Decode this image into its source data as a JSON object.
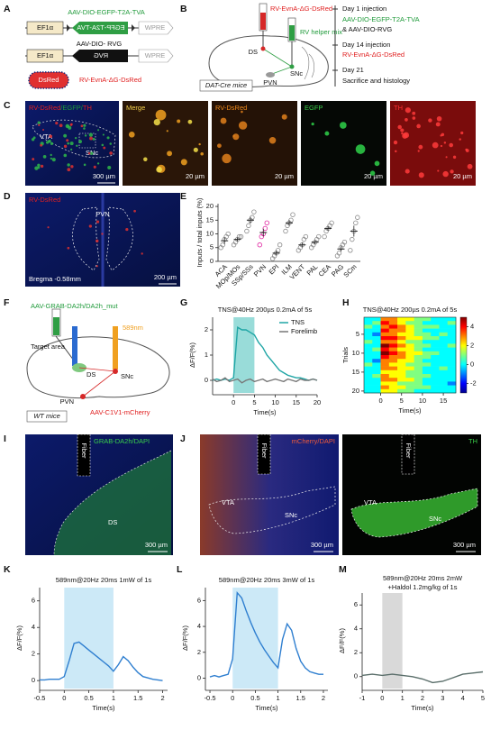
{
  "panel_labels": [
    "A",
    "B",
    "C",
    "D",
    "E",
    "F",
    "G",
    "H",
    "I",
    "J",
    "K",
    "L",
    "M"
  ],
  "A": {
    "construct1_name": "AAV-DIO-EGFP-T2A-TVA",
    "promoter1": "EF1α",
    "gene1": "EGFP-T2A-TVA",
    "wpre1": "WPRE",
    "construct2_name": "AAV-DIO- RVG",
    "promoter2": "EF1α",
    "gene2": "RVG",
    "wpre2": "WPRE",
    "gene3": "DsRed",
    "construct3_name": "RV-EvnA-ΔG-DsRed"
  },
  "B": {
    "virus1": "RV-EvnA-ΔG-DsRed",
    "virus2": "RV helper mix",
    "regions": [
      "DS",
      "SNc",
      "PVN"
    ],
    "mouse": "DAT-Cre mice",
    "timeline": [
      "Day 1 injection",
      "AAV-DIO-EGFP-T2A-TVA",
      "& AAV-DIO-RVG",
      "Day 14 injection",
      "RV-EvnA-ΔG-DsRed",
      "Day 21",
      "Sacrifice and histology"
    ]
  },
  "C": {
    "overview_label": [
      "RV-DsRed",
      "/EGFP/",
      "TH"
    ],
    "regions": [
      "VTA",
      "SNc"
    ],
    "scale": "300 µm",
    "panels": [
      {
        "label": "Merge",
        "scale": "20 µm"
      },
      {
        "label": "RV-DsRed",
        "scale": "20 µm"
      },
      {
        "label": "EGFP",
        "scale": "20 µm"
      },
      {
        "label": "TH",
        "scale": "20 µm"
      }
    ]
  },
  "D": {
    "label": "RV-DsRed",
    "region": "PVN",
    "bregma": "Bregma -0.58mm",
    "scale": "200 µm"
  },
  "F": {
    "virus1": "AAV-GRAB-DA2h/DA2h_mut",
    "laser": "589nm",
    "target": "Target area",
    "regions": [
      "DS",
      "SNc",
      "PVN"
    ],
    "mouse": "WT mice",
    "virus2": "AAV-C1V1-mCherry"
  },
  "I": {
    "label": "GRAB-DA2h/DAPI",
    "fiber": "Fiber",
    "region": "DS",
    "scale": "300 µm"
  },
  "J": {
    "left": {
      "label": "mCherry/DAPI",
      "fiber": "Fiber",
      "regions": [
        "VTA",
        "SNc"
      ],
      "scale": "300 µm"
    },
    "right": {
      "label": "TH",
      "fiber": "Fiber",
      "regions": [
        "VTA",
        "SNc"
      ],
      "scale": "300 µm"
    }
  },
  "chart_data": [
    {
      "type": "dot",
      "ylabel": "Inputs / total inputs (%)",
      "categories": [
        "ACA",
        "MOp/MOs",
        "SSp/SSs",
        "PVN",
        "EPI",
        "ILM",
        "VENT",
        "PAL",
        "CEA",
        "PAG",
        "SCm"
      ],
      "points": [
        [
          5,
          6,
          8,
          9,
          10
        ],
        [
          6,
          7,
          8,
          9,
          9
        ],
        [
          11,
          13,
          15,
          16,
          18
        ],
        [
          6,
          9,
          10,
          12,
          14
        ],
        [
          1,
          2,
          3,
          4,
          6
        ],
        [
          11,
          13,
          14,
          15,
          17
        ],
        [
          4,
          5,
          6,
          8,
          9
        ],
        [
          5,
          6,
          7,
          8,
          9
        ],
        [
          9,
          11,
          12,
          13,
          14
        ],
        [
          2,
          3,
          5,
          6,
          7
        ],
        [
          4,
          8,
          11,
          14,
          16
        ]
      ],
      "means": [
        7.5,
        8,
        15,
        10.5,
        3,
        14,
        6,
        7,
        12,
        4.5,
        11
      ],
      "sems": [
        1.2,
        0.7,
        1.2,
        1.4,
        0.8,
        1,
        0.9,
        0.7,
        0.9,
        0.9,
        2
      ],
      "colors": [
        "#8a8a8a",
        "#8a8a8a",
        "#8a8a8a",
        "#e0219f",
        "#8a8a8a",
        "#8a8a8a",
        "#8a8a8a",
        "#8a8a8a",
        "#8a8a8a",
        "#8a8a8a",
        "#8a8a8a"
      ],
      "ylim": [
        0,
        21
      ],
      "yticks": [
        0,
        5,
        10,
        15,
        20
      ]
    },
    {
      "type": "line",
      "title": "TNS@40Hz 200µs 0.2mA of 5s",
      "xlabel": "Time(s)",
      "ylabel": "ΔF/F(%)",
      "x": [
        -5,
        -4,
        -3,
        -2,
        -1,
        0,
        1,
        2,
        3,
        4,
        5,
        6,
        7,
        8,
        9,
        10,
        11,
        12,
        13,
        14,
        15,
        16,
        17,
        18,
        19,
        20
      ],
      "series": [
        {
          "name": "TNS",
          "color": "#1fa5a5",
          "values": [
            0,
            0.05,
            0,
            0.05,
            0,
            0.1,
            2.1,
            2.0,
            2.0,
            1.9,
            1.8,
            1.5,
            1.3,
            1.0,
            0.8,
            0.6,
            0.4,
            0.3,
            0.2,
            0.15,
            0.1,
            0.1,
            0.05,
            0,
            0.05,
            0
          ]
        },
        {
          "name": "Forelimb",
          "color": "#777777",
          "values": [
            0.05,
            -0.05,
            0,
            0.1,
            -0.05,
            0,
            0.05,
            -0.1,
            0,
            0.05,
            -0.05,
            0,
            0.05,
            -0.05,
            0,
            0.05,
            0,
            -0.05,
            0.05,
            0,
            -0.05,
            0.05,
            0,
            0,
            0.05,
            0
          ]
        }
      ],
      "xlim": [
        -5,
        20
      ],
      "ylim": [
        -0.5,
        2.5
      ],
      "xticks": [
        0,
        5,
        10,
        15,
        20
      ],
      "yticks": [
        0,
        1,
        2
      ],
      "shade": {
        "range": [
          0,
          5
        ],
        "color": "#7fd3cf"
      },
      "legend": "upper right"
    },
    {
      "type": "heatmap",
      "title": "TNS@40Hz 200µs 0.2mA of 5s",
      "xlabel": "Time(s)",
      "ylabel": "Trials",
      "xbins": [
        -4,
        -2,
        0,
        2,
        4,
        6,
        8,
        10,
        12,
        14,
        16,
        18
      ],
      "values": [
        [
          0,
          0,
          3,
          3,
          2,
          2,
          1,
          1,
          0,
          0,
          0
        ],
        [
          0,
          1,
          4,
          3,
          2,
          1,
          1,
          0,
          0,
          0,
          1
        ],
        [
          1,
          0,
          3,
          4,
          3,
          2,
          1,
          1,
          1,
          0,
          0
        ],
        [
          0,
          0,
          4,
          3,
          3,
          2,
          1,
          0,
          0,
          0,
          0
        ],
        [
          0,
          -1,
          3,
          3,
          2,
          2,
          1,
          1,
          0,
          1,
          0
        ],
        [
          0,
          0,
          4,
          4,
          3,
          2,
          2,
          1,
          1,
          0,
          0
        ],
        [
          1,
          0,
          3,
          3,
          2,
          1,
          1,
          0,
          0,
          0,
          0
        ],
        [
          0,
          0,
          5,
          4,
          3,
          2,
          1,
          1,
          0,
          0,
          1
        ],
        [
          0,
          1,
          4,
          3,
          2,
          2,
          1,
          0,
          0,
          0,
          0
        ],
        [
          0,
          0,
          5,
          4,
          3,
          2,
          2,
          1,
          1,
          0,
          0
        ],
        [
          0,
          0,
          4,
          3,
          3,
          2,
          1,
          1,
          0,
          0,
          0
        ],
        [
          0,
          -1,
          3,
          3,
          2,
          2,
          1,
          0,
          0,
          0,
          0
        ],
        [
          1,
          0,
          3,
          2,
          2,
          1,
          1,
          1,
          0,
          0,
          0
        ],
        [
          0,
          0,
          3,
          3,
          2,
          2,
          1,
          0,
          0,
          1,
          0
        ],
        [
          0,
          0,
          2,
          2,
          2,
          1,
          1,
          0,
          0,
          0,
          0
        ],
        [
          0,
          1,
          3,
          2,
          2,
          1,
          1,
          1,
          0,
          0,
          0
        ],
        [
          0,
          0,
          3,
          3,
          2,
          2,
          1,
          0,
          0,
          0,
          0
        ],
        [
          0,
          0,
          2,
          2,
          1,
          1,
          1,
          0,
          0,
          0,
          -1
        ],
        [
          0,
          0,
          3,
          2,
          2,
          1,
          1,
          1,
          0,
          0,
          0
        ],
        [
          0,
          0,
          2,
          2,
          1,
          1,
          0,
          0,
          0,
          0,
          0
        ]
      ],
      "ylim": [
        0.5,
        20.5
      ],
      "yticks": [
        5,
        10,
        15,
        20
      ],
      "xticks": [
        0,
        5,
        10,
        15
      ],
      "colorbar": {
        "lim": [
          -3,
          5
        ],
        "ticks": [
          4,
          2,
          0,
          -2
        ]
      }
    },
    {
      "type": "line",
      "title": "589nm@20Hz 20ms 1mW of 1s",
      "xlabel": "Time(s)",
      "ylabel": "ΔF/F(%)",
      "x": [
        -0.5,
        -0.4,
        -0.3,
        -0.2,
        -0.1,
        0,
        0.1,
        0.2,
        0.3,
        0.4,
        0.5,
        0.6,
        0.7,
        0.8,
        0.9,
        1,
        1.1,
        1.2,
        1.3,
        1.4,
        1.5,
        1.6,
        1.7,
        1.8,
        1.9,
        2
      ],
      "series": [
        {
          "color": "#2f7fd0",
          "values": [
            0.05,
            0.05,
            0.1,
            0.1,
            0.1,
            0.3,
            1.5,
            2.8,
            2.9,
            2.6,
            2.3,
            2.0,
            1.7,
            1.4,
            1.1,
            0.7,
            1.2,
            1.8,
            1.5,
            1.0,
            0.6,
            0.3,
            0.2,
            0.1,
            0.05,
            0
          ]
        }
      ],
      "xlim": [
        -0.5,
        2.1
      ],
      "ylim": [
        -0.6,
        7
      ],
      "xticks": [
        -0.5,
        0,
        0.5,
        1,
        1.5,
        2
      ],
      "yticks": [
        0,
        2,
        4,
        6
      ],
      "shade": {
        "range": [
          0,
          1
        ],
        "color": "#bfe3f5"
      }
    },
    {
      "type": "line",
      "title": "589nm@20Hz 20ms 3mW of 1s",
      "xlabel": "Time(s)",
      "ylabel": "ΔF/F(%)",
      "x": [
        -0.5,
        -0.4,
        -0.3,
        -0.2,
        -0.1,
        0,
        0.1,
        0.2,
        0.3,
        0.4,
        0.5,
        0.6,
        0.7,
        0.8,
        0.9,
        1,
        1.1,
        1.2,
        1.3,
        1.4,
        1.5,
        1.6,
        1.7,
        1.8,
        1.9,
        2
      ],
      "series": [
        {
          "color": "#2f7fd0",
          "values": [
            0.1,
            0.2,
            0.1,
            0.2,
            0.3,
            1.5,
            6.6,
            6.2,
            5.2,
            4.3,
            3.5,
            2.8,
            2.2,
            1.7,
            1.2,
            0.8,
            3,
            4.2,
            3.7,
            2.3,
            1.3,
            0.8,
            0.5,
            0.4,
            0.3,
            0.3
          ]
        }
      ],
      "xlim": [
        -0.6,
        2.1
      ],
      "ylim": [
        -0.8,
        7
      ],
      "xticks": [
        -0.5,
        0,
        0.5,
        1,
        1.5,
        2
      ],
      "yticks": [
        0,
        2,
        4,
        6
      ],
      "shade": {
        "range": [
          0,
          1
        ],
        "color": "#bfe3f5"
      }
    },
    {
      "type": "line",
      "title": [
        "589nm@20Hz 20ms 2mW",
        "+Haldol 1.2mg/kg of 1s"
      ],
      "xlabel": "Time(s)",
      "ylabel": "ΔF/F(%)",
      "x": [
        -1,
        -0.5,
        0,
        0.5,
        1,
        1.5,
        2,
        2.5,
        3,
        3.5,
        4,
        4.5,
        5
      ],
      "series": [
        {
          "color": "#5a6e6a",
          "values": [
            0.1,
            0.2,
            0.1,
            0.2,
            0.1,
            0,
            -0.2,
            -0.5,
            -0.4,
            -0.1,
            0.2,
            0.3,
            0.4
          ]
        }
      ],
      "xlim": [
        -1,
        5
      ],
      "ylim": [
        -1,
        7
      ],
      "xticks": [
        -1,
        0,
        1,
        2,
        3,
        4,
        5
      ],
      "yticks": [
        0,
        2,
        4,
        6
      ],
      "shade": {
        "range": [
          0,
          1
        ],
        "color": "#cfcfcf"
      }
    }
  ]
}
